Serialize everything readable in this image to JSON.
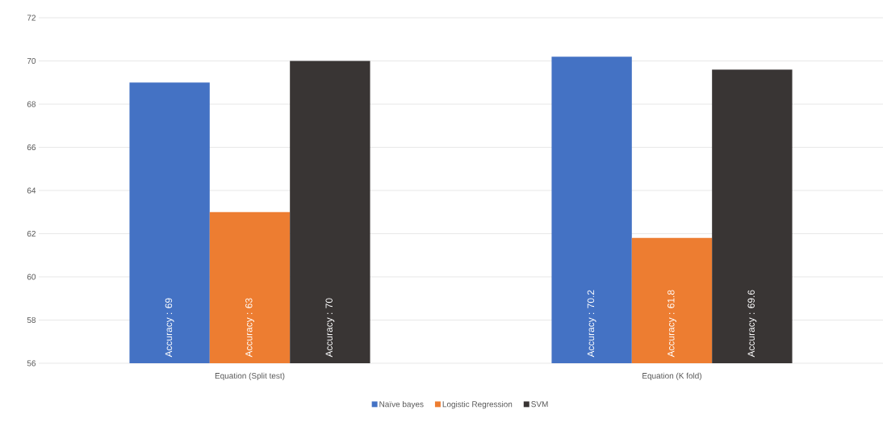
{
  "chart_data": {
    "type": "bar",
    "categories": [
      "Equation (Split test)",
      "Equation (K fold)"
    ],
    "series": [
      {
        "name": "Naïve bayes",
        "color": "#4472c4",
        "values": [
          69,
          70.2
        ],
        "value_labels": [
          "Accuracy : 69",
          "Accuracy : 70.2"
        ]
      },
      {
        "name": "Logistic Regression",
        "color": "#ed7d31",
        "values": [
          63,
          61.8
        ],
        "value_labels": [
          "Accuracy : 63",
          "Accuracy : 61.8"
        ]
      },
      {
        "name": "SVM",
        "color": "#393534",
        "values": [
          70,
          69.6
        ],
        "value_labels": [
          "Accuracy : 70",
          "Accuracy : 69.6"
        ]
      }
    ],
    "ylim": [
      56,
      72
    ],
    "yticks": [
      56,
      58,
      60,
      62,
      64,
      66,
      68,
      70,
      72
    ],
    "grid": "y",
    "legend": "bottom"
  }
}
